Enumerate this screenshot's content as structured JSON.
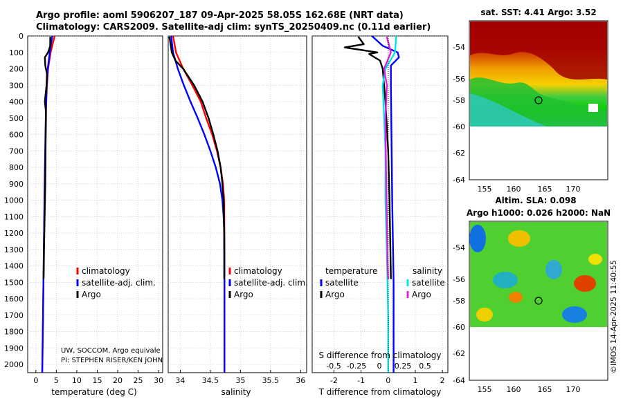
{
  "header": {
    "line1": "Argo profile: aoml 5906207_187 09-Apr-2025 58.05S 162.68E (NRT data)",
    "line2": "Climatology: CARS2009. Satellite-adj clim: synTS_20250409.nc (0.11d earlier)"
  },
  "colors": {
    "climatology": "#ff0000",
    "satellite": "#0000ff",
    "argo": "#000000",
    "sat_salinity": "#00e5e5",
    "argo_salinity": "#e020e0"
  },
  "chart_data": [
    {
      "type": "line",
      "name": "temperature",
      "xlabel": "temperature (deg C)",
      "ylabel": "",
      "xlim": [
        -2,
        31
      ],
      "ylim": [
        2050,
        0
      ],
      "xticks": [
        0,
        5,
        10,
        15,
        20,
        25,
        30
      ],
      "yticks": [
        0,
        100,
        200,
        300,
        400,
        500,
        600,
        700,
        800,
        900,
        1000,
        1100,
        1200,
        1300,
        1400,
        1500,
        1600,
        1700,
        1800,
        1900,
        2000
      ],
      "legend": [
        "climatology",
        "satellite-adj. clim.",
        "Argo"
      ],
      "note_lines": [
        "UW, SOCCOM, Argo equivale",
        "PI: STEPHEN RISER/KEN JOHN"
      ],
      "series": [
        {
          "name": "climatology",
          "color": "#ff0000",
          "x": [
            4.6,
            3.6,
            3.0,
            2.7,
            2.55,
            2.4,
            2.2,
            1.95,
            1.75,
            1.55
          ],
          "y": [
            0,
            100,
            200,
            300,
            400,
            600,
            900,
            1300,
            1700,
            2050
          ]
        },
        {
          "name": "satellite-adj. clim.",
          "color": "#0000ff",
          "x": [
            4.0,
            3.4,
            2.9,
            2.65,
            2.5,
            2.35,
            2.15,
            1.95,
            1.75,
            1.55
          ],
          "y": [
            0,
            100,
            200,
            300,
            400,
            600,
            900,
            1300,
            1700,
            2050
          ]
        },
        {
          "name": "Argo",
          "color": "#000000",
          "x": [
            3.52,
            3.5,
            3.0,
            2.2,
            2.3,
            2.7,
            2.6,
            2.2,
            2.45,
            2.4,
            2.3,
            2.0,
            1.9
          ],
          "y": [
            5,
            60,
            100,
            130,
            180,
            230,
            300,
            400,
            460,
            600,
            900,
            1300,
            1480
          ]
        }
      ]
    },
    {
      "type": "line",
      "name": "salinity",
      "xlabel": "salinity",
      "xlim": [
        33.8,
        36.1
      ],
      "ylim": [
        2050,
        0
      ],
      "xticks": [
        34,
        34.5,
        35,
        35.5,
        36
      ],
      "legend": [
        "climatology",
        "satellite-adj. clim.",
        "Argo"
      ],
      "series": [
        {
          "name": "climatology",
          "color": "#ff0000",
          "x": [
            33.88,
            33.93,
            34.05,
            34.2,
            34.34,
            34.43,
            34.53,
            34.61,
            34.67,
            34.71,
            34.73,
            34.735,
            34.735
          ],
          "y": [
            0,
            100,
            200,
            300,
            400,
            500,
            600,
            700,
            800,
            900,
            1000,
            1300,
            2050
          ]
        },
        {
          "name": "satellite-adj. clim.",
          "color": "#0000ff",
          "x": [
            33.85,
            33.88,
            33.96,
            34.06,
            34.17,
            34.29,
            34.4,
            34.5,
            34.59,
            34.66,
            34.7,
            34.72,
            34.73,
            34.735,
            34.735
          ],
          "y": [
            0,
            100,
            200,
            300,
            400,
            500,
            600,
            700,
            800,
            900,
            1000,
            1100,
            1200,
            1400,
            2050
          ]
        },
        {
          "name": "Argo",
          "color": "#000000",
          "x": [
            33.82,
            33.86,
            33.92,
            34.05,
            34.23,
            34.37,
            34.47,
            34.55,
            34.62,
            34.67,
            34.7,
            34.72,
            34.73,
            34.73
          ],
          "y": [
            5,
            100,
            150,
            200,
            300,
            400,
            500,
            600,
            700,
            800,
            900,
            1000,
            1200,
            1480
          ]
        }
      ]
    },
    {
      "type": "line",
      "name": "difference",
      "xlabel": "T difference from climatology",
      "xlabel_top": "S difference from climatology",
      "xlim": [
        -2.8,
        2.2
      ],
      "ylim": [
        2050,
        0
      ],
      "xticks": [
        -2,
        -1,
        0,
        1,
        2
      ],
      "xticklabels": [
        "-2",
        "-1",
        "0",
        "1",
        "2"
      ],
      "top_ticks": [
        "-0.5",
        "-0.25",
        "0",
        "0.25",
        "0.5"
      ],
      "legend_left_title": "temperature",
      "legend_right_title": "salinity",
      "legend_left": [
        "satellite",
        "Argo"
      ],
      "legend_right": [
        "satellite",
        "Argo"
      ],
      "series": [
        {
          "name": "T satellite",
          "color": "#0000ff",
          "x": [
            -0.6,
            -0.2,
            0.35,
            0.4,
            0.1,
            0.1,
            0.12,
            0.15,
            0.2,
            0.2
          ],
          "y": [
            0,
            60,
            100,
            130,
            180,
            300,
            600,
            1000,
            1500,
            2050
          ]
        },
        {
          "name": "T Argo",
          "color": "#000000",
          "x": [
            -1.1,
            -0.9,
            -1.6,
            -0.4,
            -0.7,
            -0.3,
            -0.2,
            -0.1,
            0.0,
            0.05,
            0.1
          ],
          "y": [
            5,
            50,
            70,
            100,
            110,
            150,
            200,
            400,
            700,
            1000,
            1480
          ]
        },
        {
          "name": "S satellite",
          "color": "#00e5e5",
          "x": [
            0.3,
            0.25,
            -0.1,
            -0.2,
            -0.15,
            -0.1,
            -0.1,
            -0.05,
            0.0,
            0.0
          ],
          "y": [
            0,
            100,
            200,
            300,
            500,
            700,
            1000,
            1300,
            1700,
            2050
          ]
        },
        {
          "name": "S Argo",
          "color": "#e020e0",
          "x": [
            -0.05,
            0.1,
            -0.15,
            -0.05,
            -0.1,
            -0.08,
            -0.05,
            -0.02,
            0.0
          ],
          "y": [
            5,
            100,
            200,
            300,
            500,
            800,
            1100,
            1400,
            1480
          ]
        }
      ]
    }
  ],
  "maps": {
    "sst": {
      "title": "sat. SST: 4.41 Argo: 3.52",
      "yticks": [
        "-54",
        "-56",
        "-58",
        "-60",
        "-62",
        "-64"
      ],
      "xticks": [
        "155",
        "160",
        "165",
        "170"
      ]
    },
    "sla": {
      "title1": "Altim. SLA: 0.098",
      "title2": "Argo h1000: 0.026 h2000: NaN",
      "yticks": [
        "-54",
        "-56",
        "-58",
        "-60",
        "-62",
        "-64"
      ],
      "xticks": [
        "155",
        "160",
        "165",
        "170"
      ]
    }
  },
  "footer_vertical": "©IMOS 14-Apr-2025 11:40:55"
}
